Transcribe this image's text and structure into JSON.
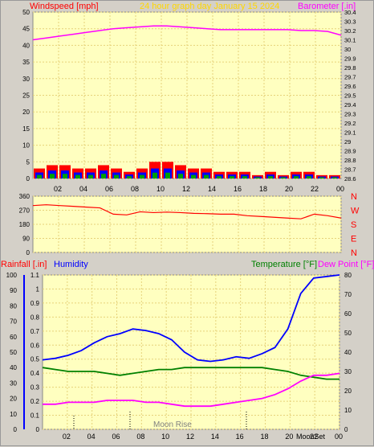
{
  "colors": {
    "bg": "#d4d0c8",
    "plot_bg": "#ffffc0",
    "grid": "#e6d27a",
    "wind": "#ff0000",
    "gust_blue": "#0000ff",
    "gust_green": "#00a000",
    "barometer": "#ff00ff",
    "direction": "#ff0000",
    "humidity": "#0000ff",
    "temperature": "#008000",
    "dewpoint": "#ff00ff",
    "rain": "#ff0000",
    "title": "#ffd700"
  },
  "header": {
    "windspeed_label": "Windspeed [mph]",
    "title": "24 hour graph day   January 15 2024",
    "barometer_label": "Barometer [.in]"
  },
  "direction_letters": [
    "N",
    "W",
    "S",
    "E",
    "N"
  ],
  "bottom_labels": {
    "rainfall": "Rainfall [.in]",
    "humidity": "Humidity",
    "temperature": "Temperature [°F]",
    "dewpoint": "Dew Point [°F]"
  },
  "moon": {
    "rise_label": "Moon Rise",
    "set_label": "MoonSet"
  },
  "chart_data": [
    {
      "type": "line",
      "name": "wind-barometer",
      "x_tick_labels": [
        "02",
        "04",
        "06",
        "08",
        "10",
        "12",
        "14",
        "16",
        "18",
        "20",
        "22",
        "00"
      ],
      "left_axis": {
        "ylim": [
          0,
          50
        ],
        "ticks": [
          0,
          5,
          10,
          15,
          20,
          25,
          30,
          35,
          40,
          45,
          50
        ]
      },
      "right_axis": {
        "ylim": [
          28.6,
          30.4
        ],
        "ticks": [
          "28.6",
          "28.7",
          "28.8",
          "28.9",
          "29",
          "29.1",
          "29.2",
          "29.3",
          "29.4",
          "29.5",
          "29.6",
          "29.7",
          "29.8",
          "29.9",
          "30",
          "30.1",
          "30.2",
          "30.3",
          "30.4"
        ]
      },
      "series": [
        {
          "name": "Windspeed",
          "values": [
            3,
            4,
            4,
            3,
            3,
            4,
            3,
            2,
            3,
            5,
            5,
            4,
            3,
            3,
            2,
            2,
            2,
            1,
            2,
            1,
            2,
            2,
            1,
            1
          ]
        },
        {
          "name": "Barometer",
          "values": [
            30.1,
            30.12,
            30.14,
            30.16,
            30.18,
            30.2,
            30.22,
            30.23,
            30.24,
            30.25,
            30.25,
            30.24,
            30.23,
            30.22,
            30.21,
            30.21,
            30.21,
            30.21,
            30.21,
            30.21,
            30.2,
            30.2,
            30.19,
            30.15
          ]
        }
      ]
    },
    {
      "type": "line",
      "name": "wind-direction",
      "ylim": [
        0,
        360
      ],
      "ticks": [
        0,
        90,
        180,
        270,
        360
      ],
      "series": [
        {
          "name": "Direction",
          "values": [
            300,
            305,
            300,
            295,
            290,
            285,
            245,
            240,
            260,
            255,
            258,
            255,
            250,
            248,
            245,
            245,
            235,
            230,
            225,
            220,
            215,
            245,
            235,
            220
          ]
        }
      ]
    },
    {
      "type": "line",
      "name": "humidity-temperature",
      "x_tick_labels": [
        "02",
        "04",
        "06",
        "08",
        "10",
        "12",
        "14",
        "16",
        "18",
        "20",
        "22",
        "00"
      ],
      "left_axis_rain": {
        "ylim": [
          0,
          1.1
        ],
        "ticks": [
          "0",
          "0.1",
          "0.2",
          "0.3",
          "0.4",
          "0.5",
          "0.6",
          "0.7",
          "0.8",
          "0.9",
          "1",
          "1.1"
        ]
      },
      "left_axis_humidity": {
        "ylim": [
          0,
          100
        ],
        "ticks": [
          0,
          10,
          20,
          30,
          40,
          50,
          60,
          70,
          80,
          90,
          100
        ]
      },
      "right_axis": {
        "ylim": [
          0,
          80
        ],
        "ticks": [
          0,
          10,
          20,
          30,
          40,
          50,
          60,
          70,
          80
        ]
      },
      "series": [
        {
          "name": "Humidity",
          "values": [
            45,
            46,
            48,
            51,
            56,
            60,
            62,
            65,
            64,
            62,
            58,
            50,
            45,
            44,
            45,
            47,
            46,
            49,
            53,
            65,
            88,
            98,
            99,
            100
          ]
        },
        {
          "name": "Temperature",
          "values": [
            32,
            31,
            30,
            30,
            30,
            29,
            28,
            29,
            30,
            31,
            31,
            32,
            32,
            32,
            32,
            32,
            32,
            32,
            31,
            30,
            28,
            27,
            26,
            26
          ]
        },
        {
          "name": "Dew Point",
          "values": [
            13,
            13,
            14,
            14,
            14,
            15,
            15,
            15,
            14,
            14,
            13,
            12,
            12,
            12,
            13,
            14,
            15,
            16,
            18,
            21,
            25,
            28,
            28,
            29
          ]
        }
      ]
    }
  ]
}
